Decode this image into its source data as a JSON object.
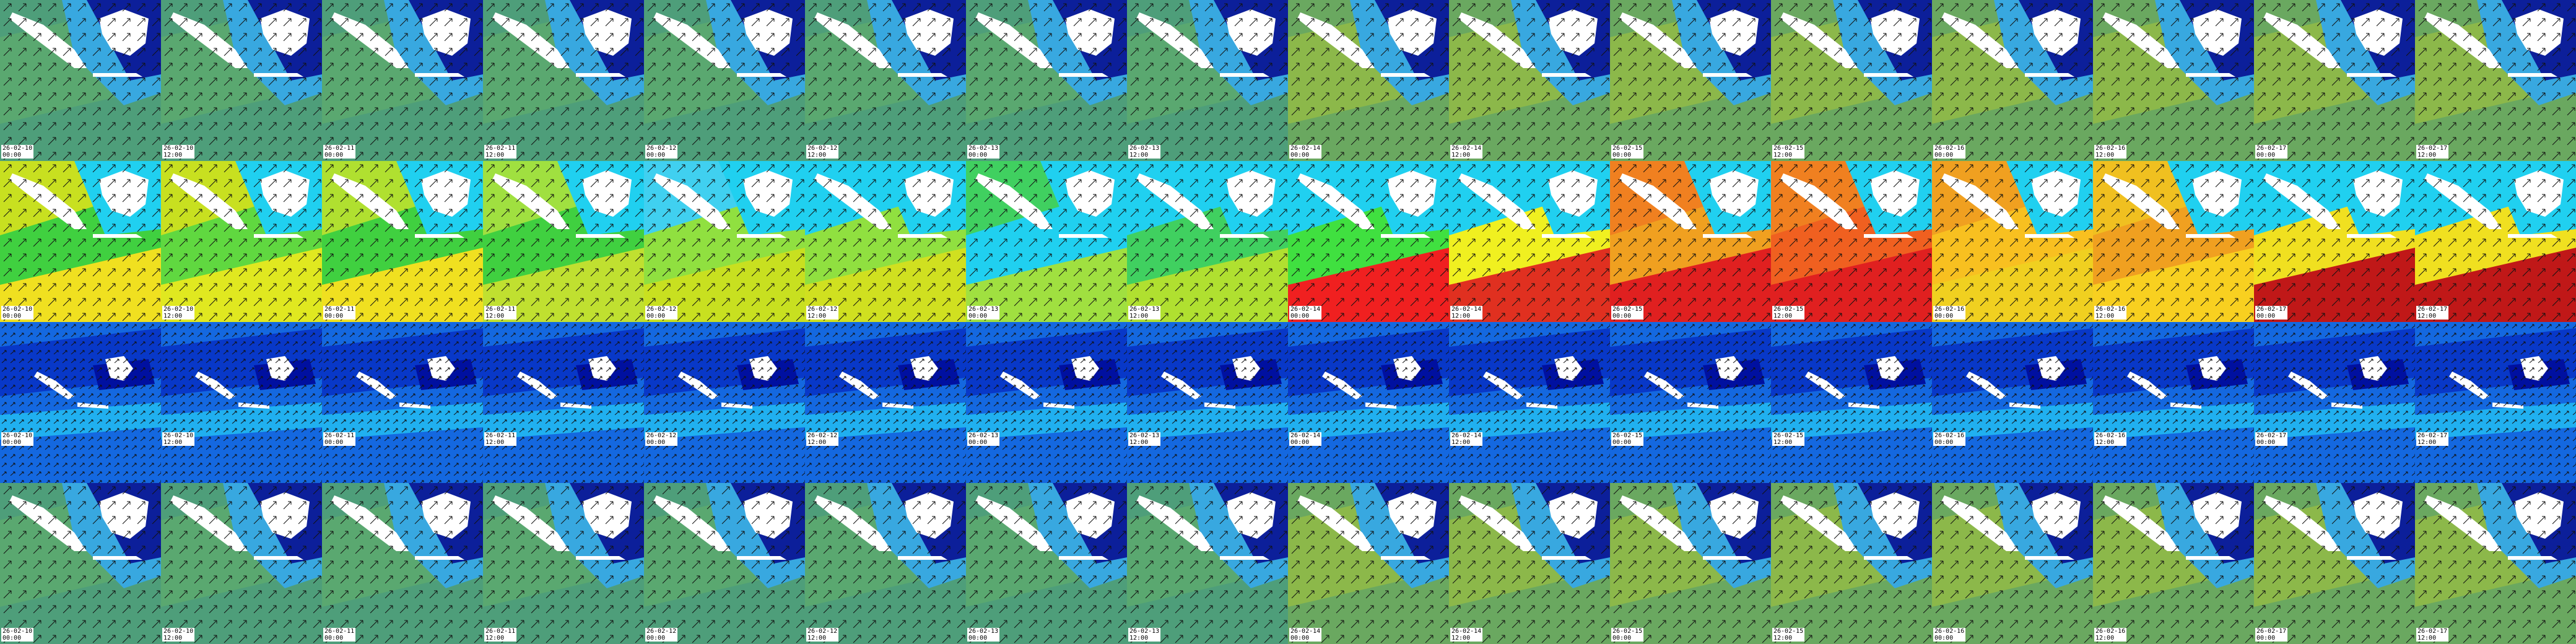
{
  "rows": [
    {
      "tiles": [
        {
          "date": "26-02-10",
          "time": "00:00"
        },
        {
          "date": "26-02-10",
          "time": "12:00"
        },
        {
          "date": "26-02-11",
          "time": "00:00"
        },
        {
          "date": "26-02-11",
          "time": "12:00"
        },
        {
          "date": "26-02-12",
          "time": "00:00"
        },
        {
          "date": "26-02-12",
          "time": "12:00"
        },
        {
          "date": "26-02-13",
          "time": "00:00"
        },
        {
          "date": "26-02-13",
          "time": "12:00"
        },
        {
          "date": "26-02-14",
          "time": "00:00"
        },
        {
          "date": "26-02-14",
          "time": "12:00"
        },
        {
          "date": "26-02-15",
          "time": "00:00"
        },
        {
          "date": "26-02-15",
          "time": "12:00"
        },
        {
          "date": "26-02-16",
          "time": "00:00"
        },
        {
          "date": "26-02-16",
          "time": "12:00"
        },
        {
          "date": "26-02-17",
          "time": "00:00"
        },
        {
          "date": "26-02-17",
          "time": "12:00"
        }
      ]
    },
    {
      "tiles": [
        {
          "date": "26-02-10",
          "time": "00:00"
        },
        {
          "date": "26-02-10",
          "time": "12:00"
        },
        {
          "date": "26-02-11",
          "time": "00:00"
        },
        {
          "date": "26-02-11",
          "time": "12:00"
        },
        {
          "date": "26-02-12",
          "time": "00:00"
        },
        {
          "date": "26-02-12",
          "time": "12:00"
        },
        {
          "date": "26-02-13",
          "time": "00:00"
        },
        {
          "date": "26-02-13",
          "time": "12:00"
        },
        {
          "date": "26-02-14",
          "time": "00:00"
        },
        {
          "date": "26-02-14",
          "time": "12:00"
        },
        {
          "date": "26-02-15",
          "time": "00:00"
        },
        {
          "date": "26-02-15",
          "time": "12:00"
        },
        {
          "date": "26-02-16",
          "time": "00:00"
        },
        {
          "date": "26-02-16",
          "time": "12:00"
        },
        {
          "date": "26-02-17",
          "time": "00:00"
        },
        {
          "date": "26-02-17",
          "time": "12:00"
        }
      ]
    },
    {
      "tiles": [
        {
          "date": "26-02-10",
          "time": "00:00"
        },
        {
          "date": "26-02-10",
          "time": "12:00"
        },
        {
          "date": "26-02-11",
          "time": "00:00"
        },
        {
          "date": "26-02-11",
          "time": "12:00"
        },
        {
          "date": "26-02-12",
          "time": "00:00"
        },
        {
          "date": "26-02-12",
          "time": "12:00"
        },
        {
          "date": "26-02-13",
          "time": "00:00"
        },
        {
          "date": "26-02-13",
          "time": "12:00"
        },
        {
          "date": "26-02-14",
          "time": "00:00"
        },
        {
          "date": "26-02-14",
          "time": "12:00"
        },
        {
          "date": "26-02-15",
          "time": "00:00"
        },
        {
          "date": "26-02-15",
          "time": "12:00"
        },
        {
          "date": "26-02-16",
          "time": "00:00"
        },
        {
          "date": "26-02-16",
          "time": "12:00"
        },
        {
          "date": "26-02-17",
          "time": "00:00"
        },
        {
          "date": "26-02-17",
          "time": "12:00"
        }
      ]
    },
    {
      "tiles": [
        {
          "date": "26-02-10",
          "time": "00:00"
        },
        {
          "date": "26-02-10",
          "time": "12:00"
        },
        {
          "date": "26-02-11",
          "time": "00:00"
        },
        {
          "date": "26-02-11",
          "time": "12:00"
        },
        {
          "date": "26-02-12",
          "time": "00:00"
        },
        {
          "date": "26-02-12",
          "time": "12:00"
        },
        {
          "date": "26-02-13",
          "time": "00:00"
        },
        {
          "date": "26-02-13",
          "time": "12:00"
        },
        {
          "date": "26-02-14",
          "time": "00:00"
        },
        {
          "date": "26-02-14",
          "time": "12:00"
        },
        {
          "date": "26-02-15",
          "time": "00:00"
        },
        {
          "date": "26-02-15",
          "time": "12:00"
        },
        {
          "date": "26-02-16",
          "time": "00:00"
        },
        {
          "date": "26-02-16",
          "time": "12:00"
        },
        {
          "date": "26-02-17",
          "time": "00:00"
        },
        {
          "date": "26-02-17",
          "time": "12:00"
        }
      ]
    }
  ]
}
